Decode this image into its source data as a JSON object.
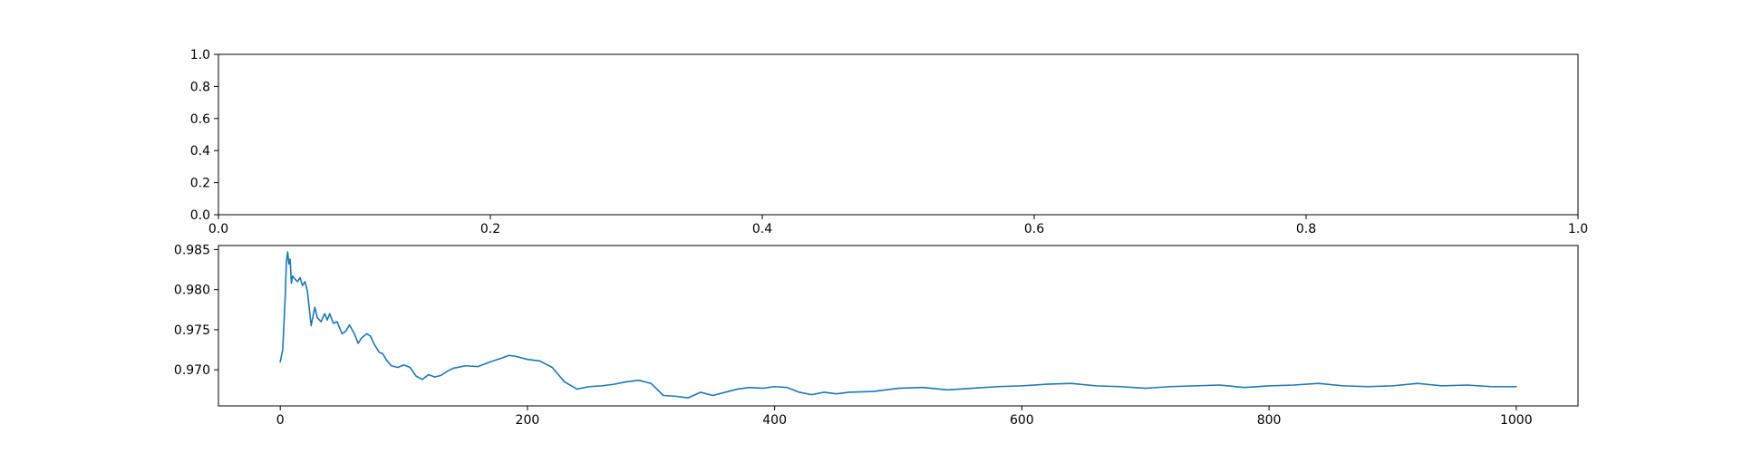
{
  "chart_data": [
    {
      "type": "line",
      "title": "",
      "xlabel": "",
      "ylabel": "",
      "xlim": [
        0.0,
        1.0
      ],
      "ylim": [
        0.0,
        1.0
      ],
      "x_ticks": [
        "0.0",
        "0.2",
        "0.4",
        "0.6",
        "0.8",
        "1.0"
      ],
      "y_ticks": [
        "0.0",
        "0.2",
        "0.4",
        "0.6",
        "0.8",
        "1.0"
      ],
      "grid": false,
      "series": []
    },
    {
      "type": "line",
      "title": "",
      "xlabel": "",
      "ylabel": "",
      "xlim": [
        -50,
        1050
      ],
      "ylim": [
        0.9655,
        0.9855
      ],
      "x_ticks": [
        "0",
        "200",
        "400",
        "600",
        "800",
        "1000"
      ],
      "y_ticks": [
        "0.970",
        "0.975",
        "0.980",
        "0.985"
      ],
      "grid": false,
      "color": "#1f77b4",
      "series": [
        {
          "x": [
            0,
            2,
            4,
            5,
            6,
            7,
            8,
            9,
            10,
            12,
            14,
            16,
            18,
            20,
            22,
            25,
            28,
            30,
            33,
            36,
            38,
            40,
            43,
            46,
            50,
            53,
            56,
            60,
            63,
            66,
            70,
            73,
            76,
            80,
            83,
            86,
            90,
            95,
            100,
            105,
            110,
            115,
            120,
            125,
            130,
            135,
            140,
            150,
            160,
            170,
            180,
            185,
            190,
            200,
            210,
            220,
            230,
            240,
            250,
            260,
            270,
            280,
            290,
            300,
            310,
            320,
            330,
            340,
            350,
            360,
            370,
            380,
            390,
            400,
            410,
            420,
            430,
            440,
            450,
            460,
            480,
            500,
            520,
            540,
            560,
            580,
            600,
            620,
            640,
            660,
            680,
            700,
            720,
            740,
            760,
            780,
            800,
            820,
            840,
            860,
            880,
            900,
            920,
            940,
            960,
            980,
            1000
          ],
          "values": [
            0.971,
            0.9725,
            0.979,
            0.9835,
            0.9847,
            0.9832,
            0.9838,
            0.9808,
            0.9817,
            0.9813,
            0.981,
            0.9815,
            0.9805,
            0.981,
            0.9798,
            0.9755,
            0.9778,
            0.9765,
            0.976,
            0.977,
            0.9762,
            0.977,
            0.9758,
            0.976,
            0.9745,
            0.9748,
            0.9756,
            0.9745,
            0.9733,
            0.974,
            0.9745,
            0.9742,
            0.9732,
            0.9722,
            0.972,
            0.9712,
            0.9705,
            0.9703,
            0.9706,
            0.9703,
            0.9692,
            0.9688,
            0.9694,
            0.9691,
            0.9693,
            0.9698,
            0.9702,
            0.9705,
            0.9704,
            0.971,
            0.9715,
            0.9718,
            0.9717,
            0.9713,
            0.9711,
            0.9703,
            0.9685,
            0.9676,
            0.9679,
            0.968,
            0.9682,
            0.9685,
            0.9687,
            0.9683,
            0.9668,
            0.9667,
            0.9665,
            0.9672,
            0.9668,
            0.9672,
            0.9676,
            0.9678,
            0.9677,
            0.9679,
            0.9678,
            0.9672,
            0.9669,
            0.9672,
            0.967,
            0.9672,
            0.9673,
            0.9677,
            0.9678,
            0.9675,
            0.9677,
            0.9679,
            0.968,
            0.9682,
            0.9683,
            0.968,
            0.9679,
            0.9677,
            0.9679,
            0.968,
            0.9681,
            0.9678,
            0.968,
            0.9681,
            0.9683,
            0.968,
            0.9679,
            0.968,
            0.9683,
            0.968,
            0.9681,
            0.9679,
            0.9679
          ]
        }
      ]
    }
  ]
}
